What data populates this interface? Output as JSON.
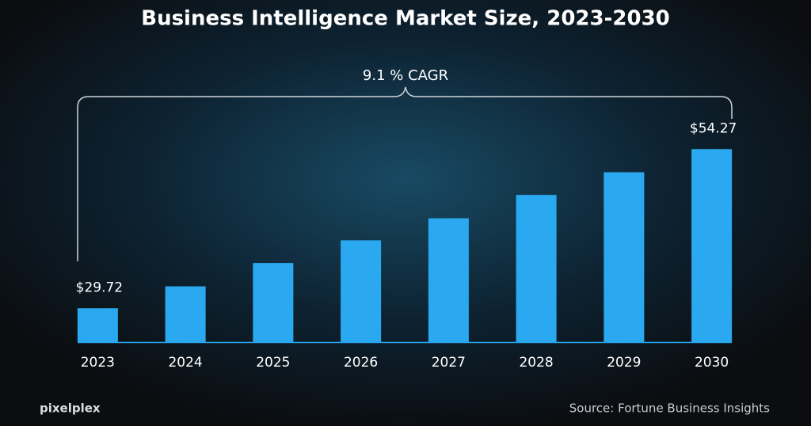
{
  "chart_data": {
    "type": "bar",
    "title": "Business Intelligence Market Size, 2023-2030",
    "annotation": "9.1 % CAGR",
    "categories": [
      "2023",
      "2024",
      "2025",
      "2026",
      "2027",
      "2028",
      "2029",
      "2030"
    ],
    "values": [
      29.72,
      33.1,
      36.7,
      40.2,
      43.6,
      47.2,
      50.7,
      54.27
    ],
    "value_labels": [
      "$29.72",
      null,
      null,
      null,
      null,
      null,
      null,
      "$54.27"
    ],
    "color": "#2aa9f1",
    "ylim": [
      24.5,
      56.5
    ],
    "source": "Source: Fortune Business Insights",
    "brand": "pixelplex"
  }
}
